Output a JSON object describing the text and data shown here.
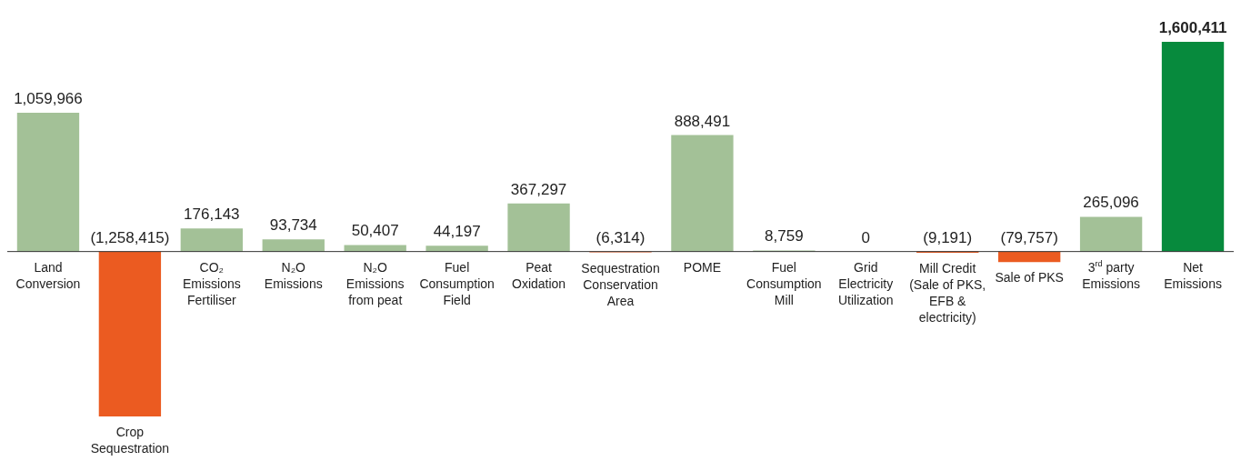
{
  "chart_data": {
    "type": "bar",
    "categories": [
      "Land Conversion",
      "Crop Sequestration",
      "CO₂ Emissions Fertiliser",
      "N₂O Emissions",
      "N₂O Emissions from peat",
      "Fuel Consumption Field",
      "Peat Oxidation",
      "Sequestration Conservation Area",
      "POME",
      "Fuel Consumption Mill",
      "Grid Electricity Utilization",
      "Mill Credit (Sale of PKS, EFB & electricity)",
      "Sale of PKS",
      "3$^{rd}$ party Emissions",
      "Net Emissions"
    ],
    "values": [
      1059966,
      -1258415,
      176143,
      93734,
      50407,
      44197,
      367297,
      -6314,
      888491,
      8759,
      0,
      -9191,
      -79757,
      265096,
      1600411
    ],
    "colors": [
      "#a3c197",
      "#eb5b21",
      "#a3c197",
      "#a3c197",
      "#a3c197",
      "#a3c197",
      "#a3c197",
      "#eb5b21",
      "#a3c197",
      "#a3c197",
      "#a3c197",
      "#eb5b21",
      "#eb5b21",
      "#a3c197",
      "#078a3d"
    ],
    "value_labels": [
      "1,059,966",
      "(1,258,415)",
      "176,143",
      "93,734",
      "50,407",
      "44,197",
      "367,297",
      "(6,314)",
      "888,491",
      "8,759",
      "0",
      "(9,191)",
      "(79,757)",
      "265,096",
      "1,600,411"
    ],
    "legend": false
  }
}
